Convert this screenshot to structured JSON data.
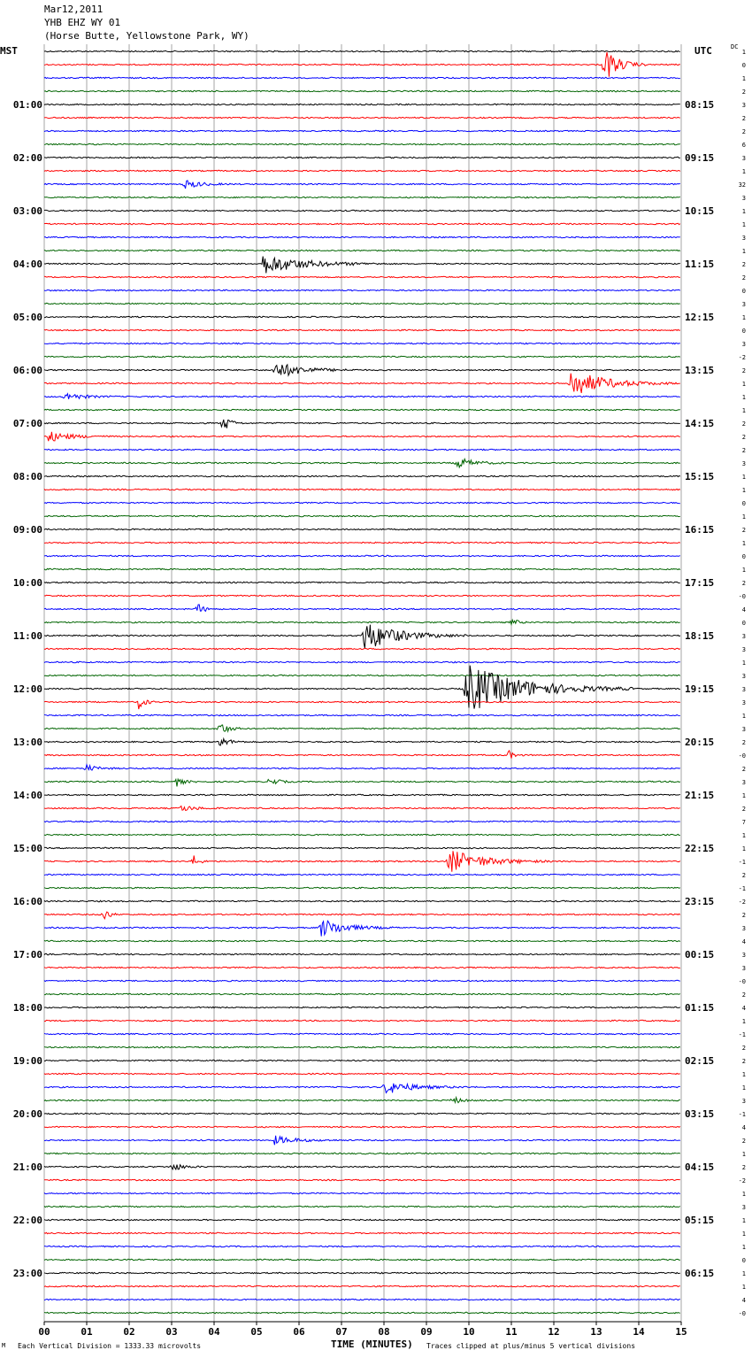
{
  "header": {
    "date": "Mar12,2011",
    "station": "YHB EHZ WY 01",
    "location": "(Horse Butte, Yellowstone Park, WY)"
  },
  "left_axis_label": "MST",
  "right_axis_label": "UTC",
  "dc_label": "DC",
  "colors": {
    "trace_cycle": [
      "#000000",
      "#ff0000",
      "#0000ff",
      "#006400"
    ],
    "grid": "#808080"
  },
  "chart_data": {
    "type": "line",
    "title": "YHB EHZ WY 01",
    "xlabel": "TIME (MINUTES)",
    "xlim": [
      0,
      15
    ],
    "x_ticks": [
      "00",
      "01",
      "02",
      "03",
      "04",
      "05",
      "06",
      "07",
      "08",
      "09",
      "10",
      "11",
      "12",
      "13",
      "14",
      "15"
    ],
    "rows_per_hour": 4,
    "num_rows": 96,
    "mst_labels": [
      "01:00",
      "02:00",
      "03:00",
      "04:00",
      "05:00",
      "06:00",
      "07:00",
      "08:00",
      "09:00",
      "10:00",
      "11:00",
      "12:00",
      "13:00",
      "14:00",
      "15:00",
      "16:00",
      "17:00",
      "18:00",
      "19:00",
      "20:00",
      "21:00",
      "22:00",
      "23:00"
    ],
    "utc_labels": [
      "08:15",
      "09:15",
      "10:15",
      "11:15",
      "12:15",
      "13:15",
      "14:15",
      "15:15",
      "16:15",
      "17:15",
      "18:15",
      "19:15",
      "20:15",
      "21:15",
      "22:15",
      "23:15",
      "00:15",
      "01:15",
      "02:15",
      "03:15",
      "04:15",
      "05:15",
      "06:15"
    ],
    "dc_offsets": [
      "1",
      "0",
      "1",
      "2",
      "3",
      "2",
      "2",
      "6",
      "3",
      "1",
      "32",
      "3",
      "1",
      "1",
      "3",
      "1",
      "2",
      "2",
      "0",
      "3",
      "1",
      "0",
      "3",
      "-2",
      "2",
      "1",
      "1",
      "1",
      "2",
      "2",
      "2",
      "3",
      "1",
      "1",
      "0",
      "1",
      "2",
      "1",
      "0",
      "1",
      "2",
      "-0",
      "4",
      "0",
      "3",
      "3",
      "1",
      "3",
      "3",
      "3",
      "1",
      "3",
      "2",
      "-0",
      "2",
      "3",
      "1",
      "2",
      "7",
      "1",
      "1",
      "-1",
      "2",
      "-1",
      "-2",
      "2",
      "3",
      "4",
      "3",
      "3",
      "-0",
      "2",
      "4",
      "1",
      "-1",
      "2",
      "2",
      "1",
      "1",
      "3",
      "-1",
      "4",
      "2",
      "1",
      "2",
      "-2",
      "1",
      "3",
      "1",
      "1",
      "1",
      "0",
      "1",
      "1",
      "4",
      "-0"
    ],
    "events": [
      {
        "row": 1,
        "minute": 13.2,
        "amplitude": 20,
        "duration": 1.0
      },
      {
        "row": 10,
        "minute": 3.3,
        "amplitude": 5,
        "duration": 1.2
      },
      {
        "row": 16,
        "minute": 5.1,
        "amplitude": 12,
        "duration": 3.0
      },
      {
        "row": 24,
        "minute": 5.4,
        "amplitude": 10,
        "duration": 2.0
      },
      {
        "row": 25,
        "minute": 12.4,
        "amplitude": 16,
        "duration": 2.5
      },
      {
        "row": 26,
        "minute": 0.5,
        "amplitude": 5,
        "duration": 1.2
      },
      {
        "row": 28,
        "minute": 4.2,
        "amplitude": 12,
        "duration": 0.5
      },
      {
        "row": 29,
        "minute": 0.1,
        "amplitude": 6,
        "duration": 1.6
      },
      {
        "row": 31,
        "minute": 9.7,
        "amplitude": 7,
        "duration": 1.2
      },
      {
        "row": 42,
        "minute": 3.6,
        "amplitude": 7,
        "duration": 0.5
      },
      {
        "row": 43,
        "minute": 11.0,
        "amplitude": 6,
        "duration": 0.4
      },
      {
        "row": 44,
        "minute": 7.5,
        "amplitude": 18,
        "duration": 2.5
      },
      {
        "row": 48,
        "minute": 9.9,
        "amplitude": 30,
        "duration": 4.0
      },
      {
        "row": 49,
        "minute": 2.2,
        "amplitude": 9,
        "duration": 0.5
      },
      {
        "row": 51,
        "minute": 4.1,
        "amplitude": 10,
        "duration": 0.6
      },
      {
        "row": 52,
        "minute": 4.1,
        "amplitude": 7,
        "duration": 0.7
      },
      {
        "row": 53,
        "minute": 10.9,
        "amplitude": 7,
        "duration": 0.4
      },
      {
        "row": 54,
        "minute": 1.0,
        "amplitude": 4,
        "duration": 0.8
      },
      {
        "row": 55,
        "minute": 3.1,
        "amplitude": 6,
        "duration": 0.5
      },
      {
        "row": 55,
        "minute": 5.3,
        "amplitude": 6,
        "duration": 0.6
      },
      {
        "row": 57,
        "minute": 3.2,
        "amplitude": 4,
        "duration": 1.0
      },
      {
        "row": 61,
        "minute": 3.5,
        "amplitude": 8,
        "duration": 0.4
      },
      {
        "row": 61,
        "minute": 9.5,
        "amplitude": 14,
        "duration": 2.5
      },
      {
        "row": 65,
        "minute": 1.4,
        "amplitude": 8,
        "duration": 0.4
      },
      {
        "row": 66,
        "minute": 6.5,
        "amplitude": 11,
        "duration": 1.8
      },
      {
        "row": 78,
        "minute": 8.0,
        "amplitude": 8,
        "duration": 2.0
      },
      {
        "row": 79,
        "minute": 9.6,
        "amplitude": 5,
        "duration": 0.6
      },
      {
        "row": 82,
        "minute": 5.4,
        "amplitude": 5,
        "duration": 1.6
      },
      {
        "row": 84,
        "minute": 3.0,
        "amplitude": 5,
        "duration": 0.8
      }
    ]
  },
  "footer": {
    "left": "Each Vertical Division = 1333.33 microvolts",
    "right": "Traces clipped at plus/minus 5 vertical divisions",
    "left_mark": "M"
  }
}
